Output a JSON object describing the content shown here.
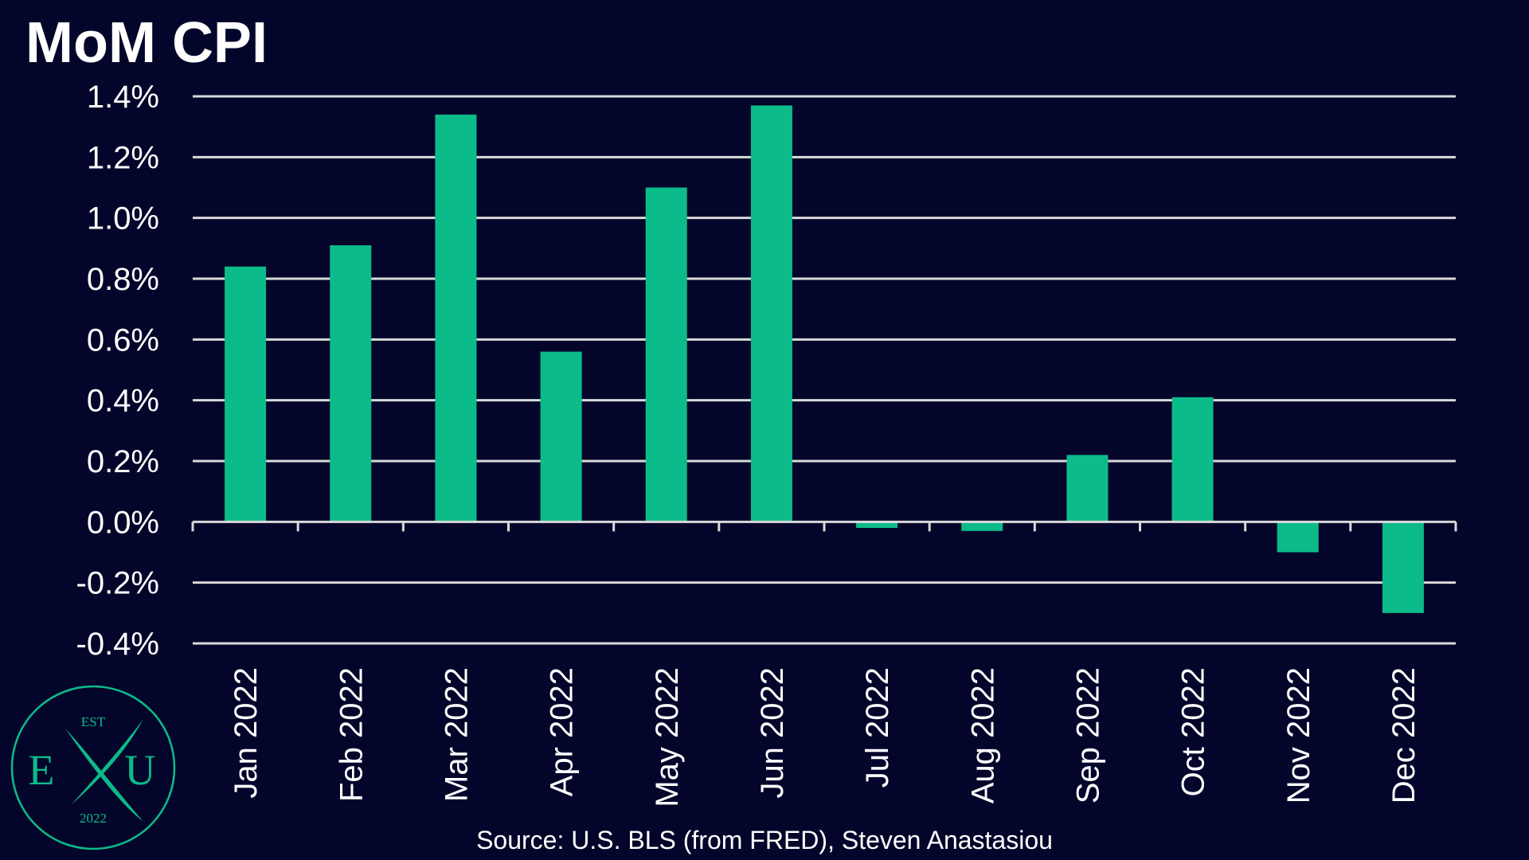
{
  "colors": {
    "background": "#03062a",
    "bar": "#0cbb8a",
    "grid": "#d9d9d9",
    "text": "#ffffff",
    "logo": "#0cbb8a"
  },
  "chart_data": {
    "type": "bar",
    "title": "MoM CPI",
    "xlabel": "",
    "ylabel": "",
    "categories": [
      "Jan 2022",
      "Feb 2022",
      "Mar 2022",
      "Apr 2022",
      "May 2022",
      "Jun 2022",
      "Jul 2022",
      "Aug 2022",
      "Sep 2022",
      "Oct 2022",
      "Nov 2022",
      "Dec 2022"
    ],
    "values": [
      0.84,
      0.91,
      1.34,
      0.56,
      1.1,
      1.37,
      -0.02,
      -0.03,
      0.22,
      0.41,
      -0.1,
      -0.3
    ],
    "ylim": [
      -0.4,
      1.4
    ],
    "yticks": [
      1.4,
      1.2,
      1.0,
      0.8,
      0.6,
      0.4,
      0.2,
      0.0,
      -0.2,
      -0.4
    ],
    "ytick_labels": [
      "1.4%",
      "1.2%",
      "1.0%",
      "0.8%",
      "0.6%",
      "0.4%",
      "0.2%",
      "0.0%",
      "-0.2%",
      "-0.4%"
    ],
    "grid": true,
    "legend": "none"
  },
  "source": "Source: U.S. BLS (from FRED), Steven Anastasiou",
  "logo": {
    "top_text": "EST",
    "left_letter": "E",
    "right_letter": "U",
    "bottom_text": "2022",
    "icon": "crossed-x-logo"
  }
}
